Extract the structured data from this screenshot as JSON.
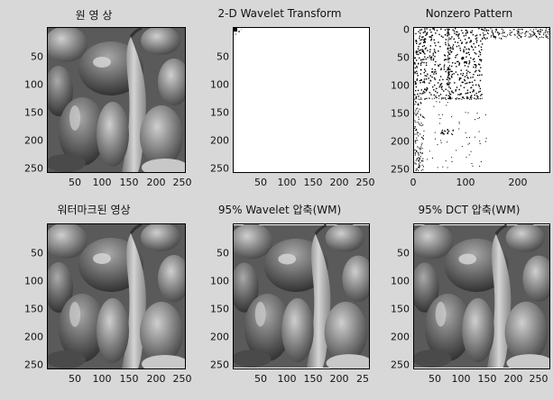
{
  "chart_data": [
    {
      "type": "image",
      "title": "원 영 상",
      "yticks": [
        "50",
        "100",
        "150",
        "200",
        "250"
      ],
      "xticks": [
        "50",
        "100",
        "150",
        "200",
        "250"
      ],
      "content": "pepper-photo"
    },
    {
      "type": "image",
      "title": "2-D Wavelet Transform",
      "yticks": [
        "50",
        "100",
        "150",
        "200",
        "250"
      ],
      "xticks": [
        "50",
        "100",
        "150",
        "200",
        "250"
      ],
      "content": "wavelet-coefficients"
    },
    {
      "type": "scatter",
      "title": "Nonzero Pattern",
      "yticks": [
        "0",
        "50",
        "100",
        "150",
        "200",
        "250"
      ],
      "xticks": [
        "0",
        "100",
        "200"
      ],
      "content": "sparsity-pattern"
    },
    {
      "type": "image",
      "title": "워터마크된 영상",
      "yticks": [
        "50",
        "100",
        "150",
        "200",
        "250"
      ],
      "xticks": [
        "50",
        "100",
        "150",
        "200",
        "250"
      ],
      "content": "pepper-photo"
    },
    {
      "type": "image",
      "title": "95% Wavelet 압축(WM)",
      "yticks": [
        "50",
        "100",
        "150",
        "200",
        "250"
      ],
      "xticks": [
        "50",
        "100",
        "150",
        "200",
        "25"
      ],
      "content": "pepper-photo"
    },
    {
      "type": "image",
      "title": "95% DCT 압축(WM)",
      "yticks": [
        "50",
        "100",
        "150",
        "200",
        "250"
      ],
      "xticks": [
        "50",
        "100",
        "150",
        "200",
        "250"
      ],
      "content": "pepper-photo"
    }
  ]
}
